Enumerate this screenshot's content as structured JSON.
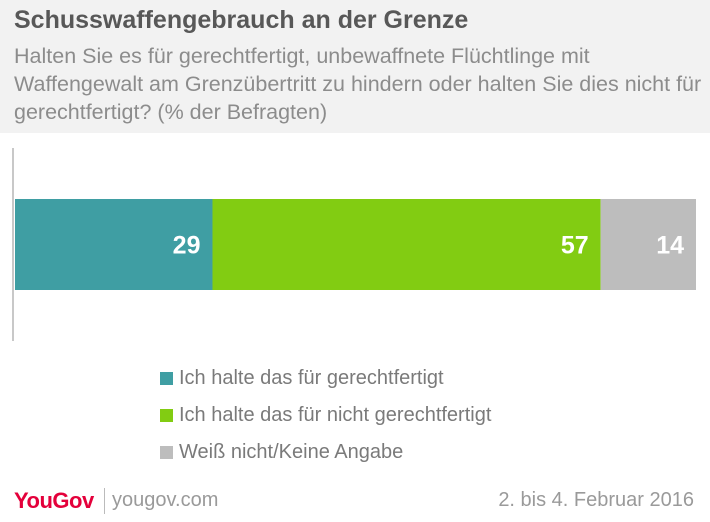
{
  "header": {
    "title": "Schusswaffengebrauch an der Grenze",
    "subtitle": "Halten Sie es für gerechtfertigt, unbewaffnete Flüchtlinge mit Waffengewalt am Grenzübertritt zu hindern oder halten Sie dies nicht für gerechtfertigt? (% der Befragten)"
  },
  "chart_data": {
    "type": "bar",
    "orientation": "horizontal-stacked",
    "title": "Schusswaffengebrauch an der Grenze",
    "subtitle": "Halten Sie es für gerechtfertigt, unbewaffnete Flüchtlinge mit Waffengewalt am Grenzübertritt zu hindern oder halten Sie dies nicht für gerechtfertigt? (% der Befragten)",
    "categories": [
      ""
    ],
    "series": [
      {
        "name": "Ich halte das für gerechtfertigt",
        "values": [
          29
        ],
        "color": "#3f9ea3"
      },
      {
        "name": "Ich halte das für nicht gerechtfertigt",
        "values": [
          57
        ],
        "color": "#82cc12"
      },
      {
        "name": "Weiß nicht/Keine Angabe",
        "values": [
          14
        ],
        "color": "#bdbdbd"
      }
    ],
    "xlim": [
      0,
      100
    ],
    "grid": false,
    "legend": "bottom"
  },
  "footer": {
    "brand": "YouGov",
    "url": "yougov.com",
    "date": "2. bis 4. Februar 2016"
  }
}
